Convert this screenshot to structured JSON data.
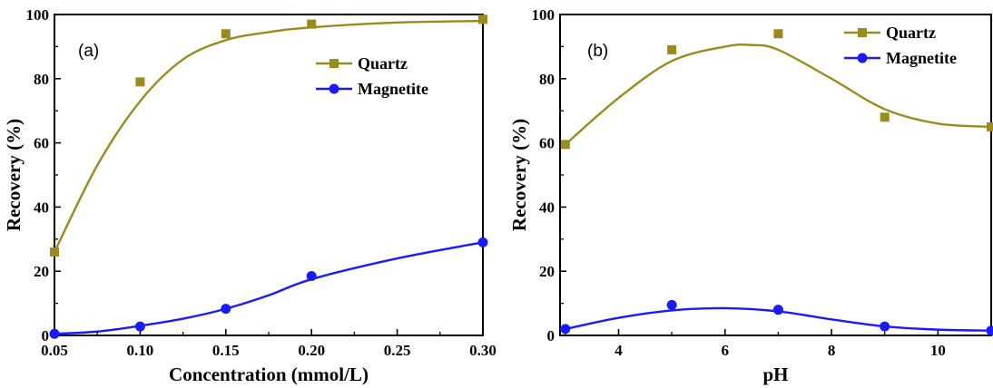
{
  "colors": {
    "quartz": "#9a8b1e",
    "magnetite": "#1a1aff",
    "axis": "#000000"
  },
  "chart_data": [
    {
      "type": "line",
      "panel_label": "(a)",
      "xlabel": "Concentration (mmol/L)",
      "ylabel": "Recovery (%)",
      "xlim": [
        0.05,
        0.3
      ],
      "ylim": [
        0,
        100
      ],
      "xticks": [
        0.05,
        0.1,
        0.15,
        0.2,
        0.25,
        0.3
      ],
      "xtick_labels": [
        "0.05",
        "0.10",
        "0.15",
        "0.20",
        "0.25",
        "0.30"
      ],
      "yticks": [
        0,
        20,
        40,
        60,
        80,
        100
      ],
      "ytick_labels": [
        "0",
        "20",
        "40",
        "60",
        "80",
        "100"
      ],
      "legend_position": "top-right",
      "series": [
        {
          "name": "Quartz",
          "marker": "square",
          "x": [
            0.05,
            0.1,
            0.15,
            0.2,
            0.3
          ],
          "y": [
            26,
            79,
            94,
            97,
            98.5
          ],
          "fit": [
            [
              0.05,
              26
            ],
            [
              0.075,
              53
            ],
            [
              0.1,
              73
            ],
            [
              0.125,
              86
            ],
            [
              0.15,
              92
            ],
            [
              0.175,
              94.5
            ],
            [
              0.2,
              96
            ],
            [
              0.25,
              97.5
            ],
            [
              0.3,
              98
            ]
          ]
        },
        {
          "name": "Magnetite",
          "marker": "circle",
          "x": [
            0.05,
            0.1,
            0.15,
            0.2,
            0.3
          ],
          "y": [
            0.5,
            2.8,
            8.3,
            18.5,
            29
          ],
          "fit": [
            [
              0.05,
              0.5
            ],
            [
              0.075,
              1.2
            ],
            [
              0.1,
              3
            ],
            [
              0.125,
              5.2
            ],
            [
              0.15,
              8.3
            ],
            [
              0.175,
              12.5
            ],
            [
              0.2,
              17.5
            ],
            [
              0.25,
              24
            ],
            [
              0.3,
              29
            ]
          ]
        }
      ]
    },
    {
      "type": "line",
      "panel_label": "(b)",
      "xlabel": "pH",
      "ylabel": "Recovery (%)",
      "xlim": [
        2.9,
        11
      ],
      "ylim": [
        0,
        100
      ],
      "xticks": [
        4,
        6,
        8,
        10
      ],
      "xtick_labels": [
        "4",
        "6",
        "8",
        "10"
      ],
      "yticks": [
        0,
        20,
        40,
        60,
        80,
        100
      ],
      "ytick_labels": [
        "0",
        "20",
        "40",
        "60",
        "80",
        "100"
      ],
      "legend_position": "top-right",
      "series": [
        {
          "name": "Quartz",
          "marker": "square",
          "x": [
            3,
            5,
            7,
            9,
            11
          ],
          "y": [
            59.5,
            89,
            94,
            68,
            65
          ],
          "fit": [
            [
              3,
              59.5
            ],
            [
              4,
              74
            ],
            [
              5,
              85.5
            ],
            [
              6,
              90
            ],
            [
              6.5,
              90.5
            ],
            [
              7,
              89
            ],
            [
              8,
              80
            ],
            [
              9,
              70.5
            ],
            [
              10,
              66
            ],
            [
              11,
              65
            ]
          ]
        },
        {
          "name": "Magnetite",
          "marker": "circle",
          "x": [
            3,
            5,
            7,
            9,
            11
          ],
          "y": [
            2,
            9.5,
            8,
            2.8,
            1.5
          ],
          "fit": [
            [
              3,
              2
            ],
            [
              4,
              5.5
            ],
            [
              5,
              7.8
            ],
            [
              6,
              8.5
            ],
            [
              7,
              7.5
            ],
            [
              8,
              5
            ],
            [
              9,
              2.8
            ],
            [
              10,
              1.8
            ],
            [
              11,
              1.5
            ]
          ]
        }
      ]
    }
  ]
}
